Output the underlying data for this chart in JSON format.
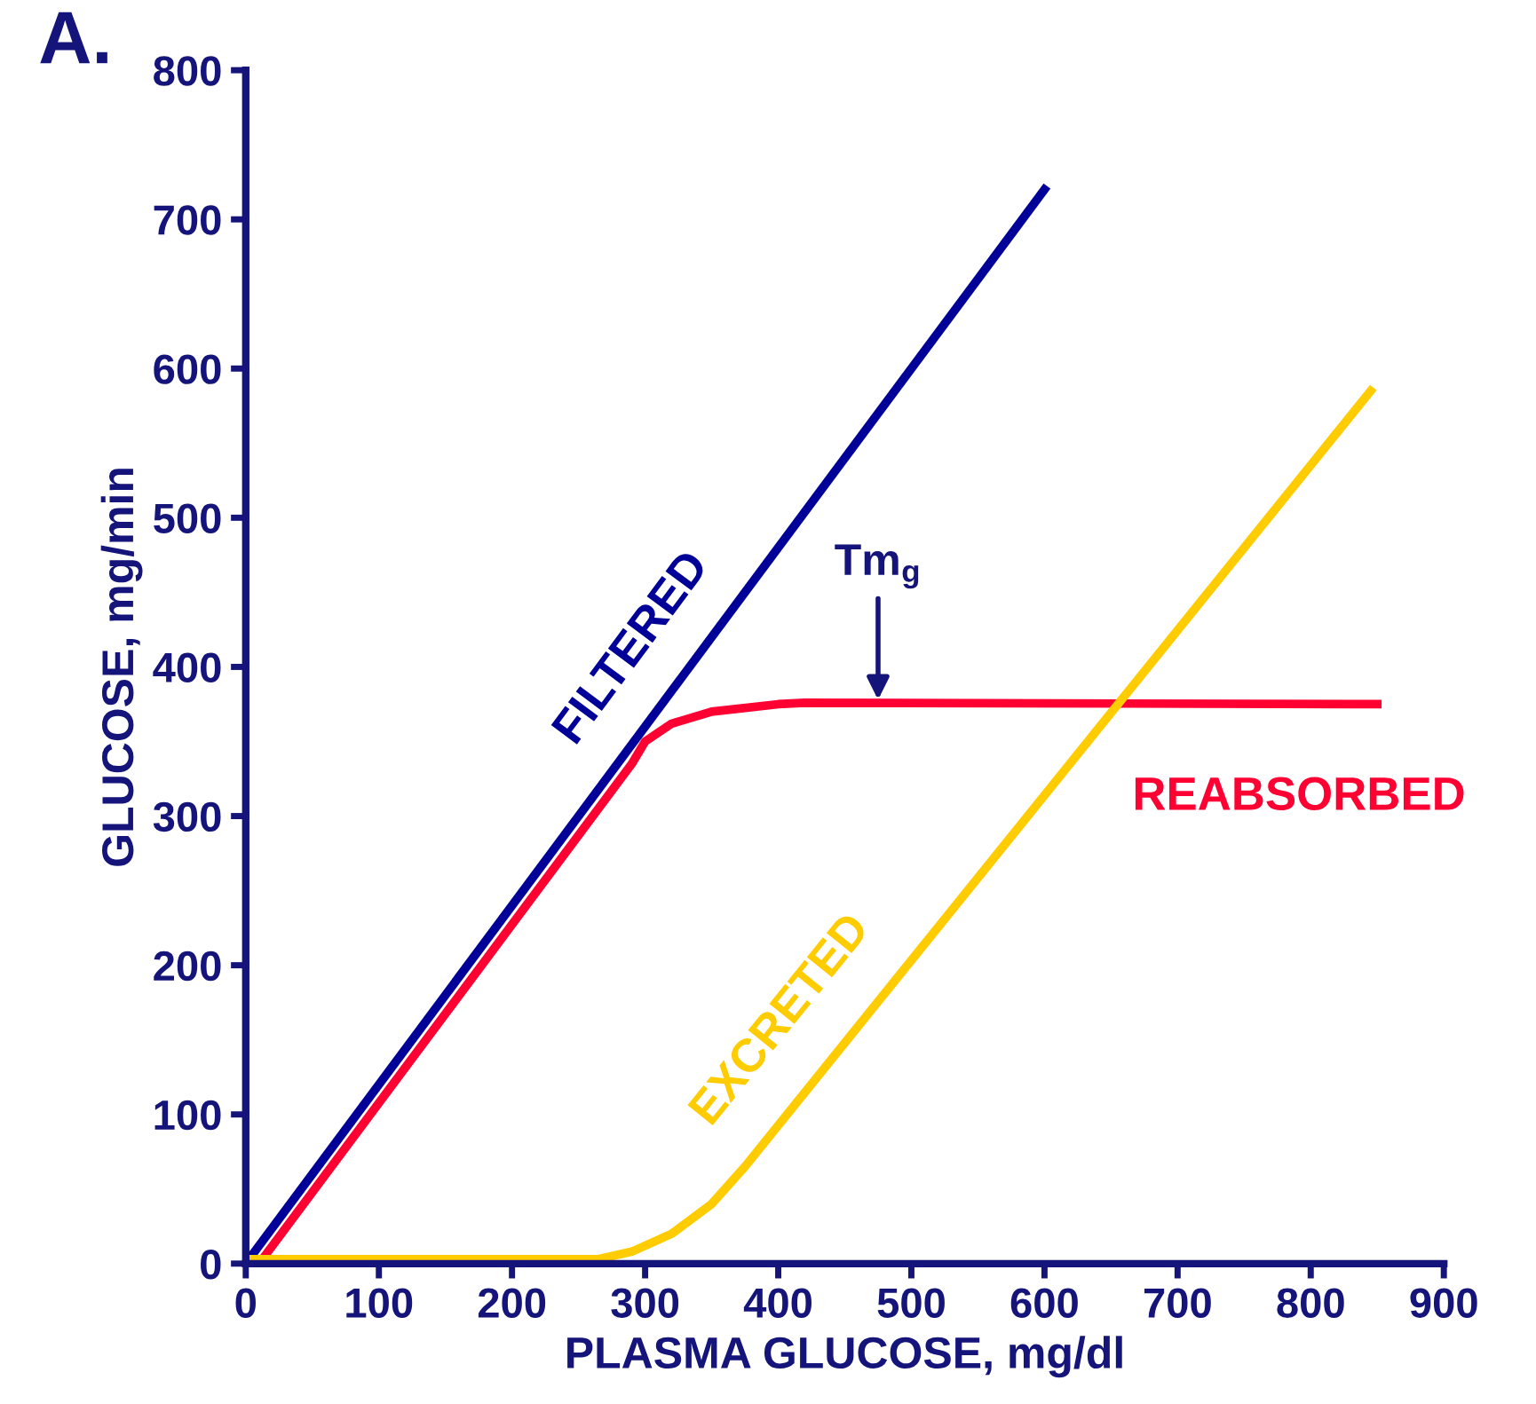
{
  "chart_data": {
    "type": "line",
    "xlabel": "PLASMA GLUCOSE, mg/dl",
    "ylabel": "GLUCOSE, mg/min",
    "xlim": [
      0,
      900
    ],
    "ylim": [
      0,
      800
    ],
    "xticks": [
      0,
      100,
      200,
      300,
      400,
      500,
      600,
      700,
      800,
      900
    ],
    "yticks": [
      0,
      100,
      200,
      300,
      400,
      500,
      600,
      700,
      800
    ],
    "grid": false,
    "legend": false,
    "marker": "none",
    "line_style": "solid",
    "series": [
      {
        "name": "FILTERED",
        "color": "#000099",
        "x": [
          0,
          600
        ],
        "values": [
          0,
          720
        ]
      },
      {
        "name": "REABSORBED",
        "color": "#ff0033",
        "x": [
          10,
          290,
          300,
          320,
          350,
          400,
          420,
          850
        ],
        "values": [
          0,
          335,
          350,
          362,
          370,
          375,
          376,
          375
        ]
      },
      {
        "name": "EXCRETED",
        "color": "#ffcc00",
        "x": [
          0,
          265,
          290,
          320,
          350,
          375,
          845
        ],
        "values": [
          3,
          3,
          8,
          20,
          40,
          65,
          585
        ]
      }
    ],
    "annotations": [
      "A.",
      {
        "text": "Tm$_{g}$",
        "x": 475,
        "y": 378
      }
    ]
  }
}
